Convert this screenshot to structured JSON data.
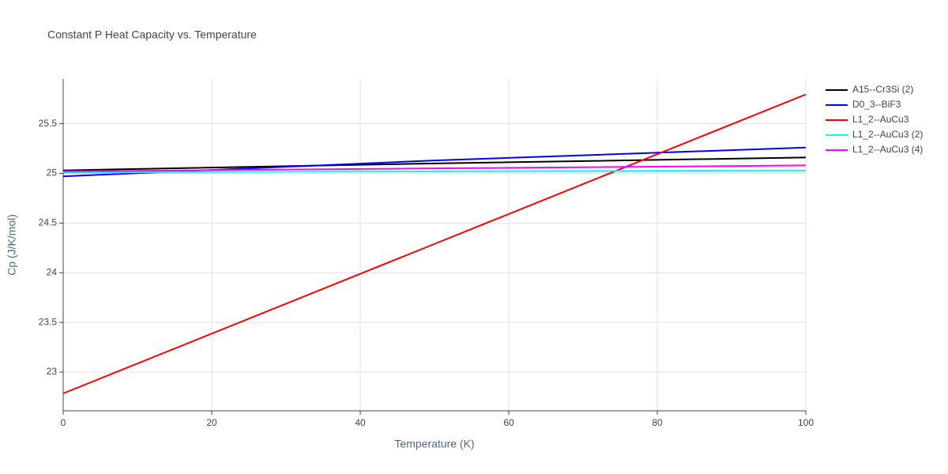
{
  "chart_data": {
    "type": "line",
    "title": "Constant P Heat Capacity vs. Temperature",
    "x_label": "Temperature (K)",
    "y_label": "Cp (J/K/mol)",
    "x": [
      0,
      50,
      100
    ],
    "series": [
      {
        "name": "A15--Cr3Si (2)",
        "color": "#000000",
        "values": [
          25.03,
          25.1,
          25.16
        ]
      },
      {
        "name": "D0_3--BiF3",
        "color": "#0000ff",
        "values": [
          24.97,
          25.13,
          25.26
        ]
      },
      {
        "name": "L1_2--AuCu3",
        "color": "#ff0000",
        "values": [
          22.785,
          24.29,
          25.795
        ]
      },
      {
        "name": "L1_2--AuCu3 (2)",
        "color": "#00ffff",
        "values": [
          25.01,
          25.02,
          25.03
        ]
      },
      {
        "name": "L1_2--AuCu3 (4)",
        "color": "#ff00ff",
        "values": [
          25.02,
          25.05,
          25.08
        ]
      }
    ],
    "xlim": [
      0,
      100
    ],
    "xticks": [
      0,
      20,
      40,
      60,
      80,
      100
    ],
    "ylim": [
      22.61,
      25.95
    ],
    "yticks": [
      23,
      23.5,
      24,
      24.5,
      25,
      25.5
    ],
    "grid": true,
    "legend": "right"
  }
}
